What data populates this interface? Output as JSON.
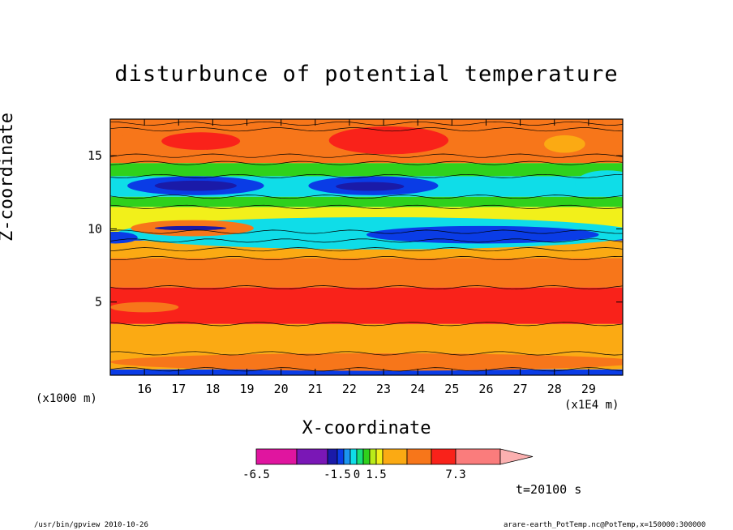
{
  "chart_data": {
    "type": "heatmap",
    "title": "disturbunce of potential temperature",
    "xlabel": "X-coordinate",
    "ylabel": "Z-coordinate",
    "x_unit_label": "(x1000 m)",
    "x_unit_label_2": "(x1E4 m)",
    "x_ticks": [
      16,
      17,
      18,
      19,
      20,
      21,
      22,
      23,
      24,
      25,
      26,
      27,
      28,
      29
    ],
    "x_tick_labels": [
      "16",
      "17",
      "18",
      "19",
      "20",
      "21",
      "22",
      "23",
      "24",
      "25",
      "26",
      "27",
      "28",
      "29"
    ],
    "xlim": [
      15.0,
      30.0
    ],
    "y_ticks": [
      5,
      10,
      15
    ],
    "y_tick_labels": [
      "5",
      "10",
      "15"
    ],
    "ylim": [
      0.0,
      17.5
    ],
    "grid": false,
    "colorbar": {
      "orientation": "horizontal",
      "levels": [
        -6.5,
        -4.5,
        -3.0,
        -1.5,
        -1.0,
        -0.5,
        0,
        0.5,
        1.0,
        1.5,
        2.5,
        3.5,
        5.3,
        7.3
      ],
      "tick_labels": [
        "-6.5",
        "-1.5",
        "0",
        "1.5",
        "7.3"
      ],
      "tick_values": [
        -6.5,
        -1.5,
        0,
        1.5,
        7.3
      ],
      "colors": [
        "#e0159f",
        "#7a17b6",
        "#1a1aa8",
        "#0a3ce6",
        "#1b95f0",
        "#0fdde8",
        "#18e07a",
        "#2fd11c",
        "#b9ec19",
        "#f2f01a",
        "#fbaa13",
        "#f7761a",
        "#f9221a",
        "#fa7c7c",
        "#fbb0b0"
      ],
      "colors_note_keys": [
        "below -6.5",
        "-6.5..-4.5",
        "-4.5..-3",
        "-3..-1.5",
        "-1.5..-1",
        "-1..-0.5",
        "-0.5..0",
        "0..0.5",
        "0.5..1",
        "1..1.5",
        "1.5..2.5",
        "2.5..3.5",
        "3.5..5.3",
        "5.3..7.3",
        "above 7.3"
      ]
    },
    "layers": [
      {
        "z_range": [
          0.0,
          0.4
        ],
        "value_class": "#0a3ce6"
      },
      {
        "z_range": [
          0.4,
          1.5
        ],
        "value_class": "#fbaa13"
      },
      {
        "z_range": [
          1.5,
          3.5
        ],
        "value_class": "#fbaa13"
      },
      {
        "z_range": [
          3.5,
          6.0
        ],
        "value_class": "#f9221a"
      },
      {
        "z_range": [
          6.0,
          8.0
        ],
        "value_class": "#f7761a"
      },
      {
        "z_range": [
          8.0,
          9.2
        ],
        "value_class": "#fbaa13"
      },
      {
        "z_range": [
          9.2,
          9.8
        ],
        "value_class": "#0a3ce6"
      },
      {
        "z_range": [
          9.8,
          11.5
        ],
        "value_class": "#f2f01a"
      },
      {
        "z_range": [
          11.5,
          12.2
        ],
        "value_class": "#2fd11c"
      },
      {
        "z_range": [
          12.2,
          13.6
        ],
        "value_class": "#0fdde8"
      },
      {
        "z_range": [
          13.6,
          14.5
        ],
        "value_class": "#2fd11c"
      },
      {
        "z_range": [
          14.5,
          17.5
        ],
        "value_class": "#f7761a"
      }
    ]
  },
  "annotations": {
    "time": "t=20100 s",
    "footer_left": "/usr/bin/gpview   2010-10-26",
    "footer_right": "arare-earth_PotTemp.nc@PotTemp,x=150000:300000"
  }
}
